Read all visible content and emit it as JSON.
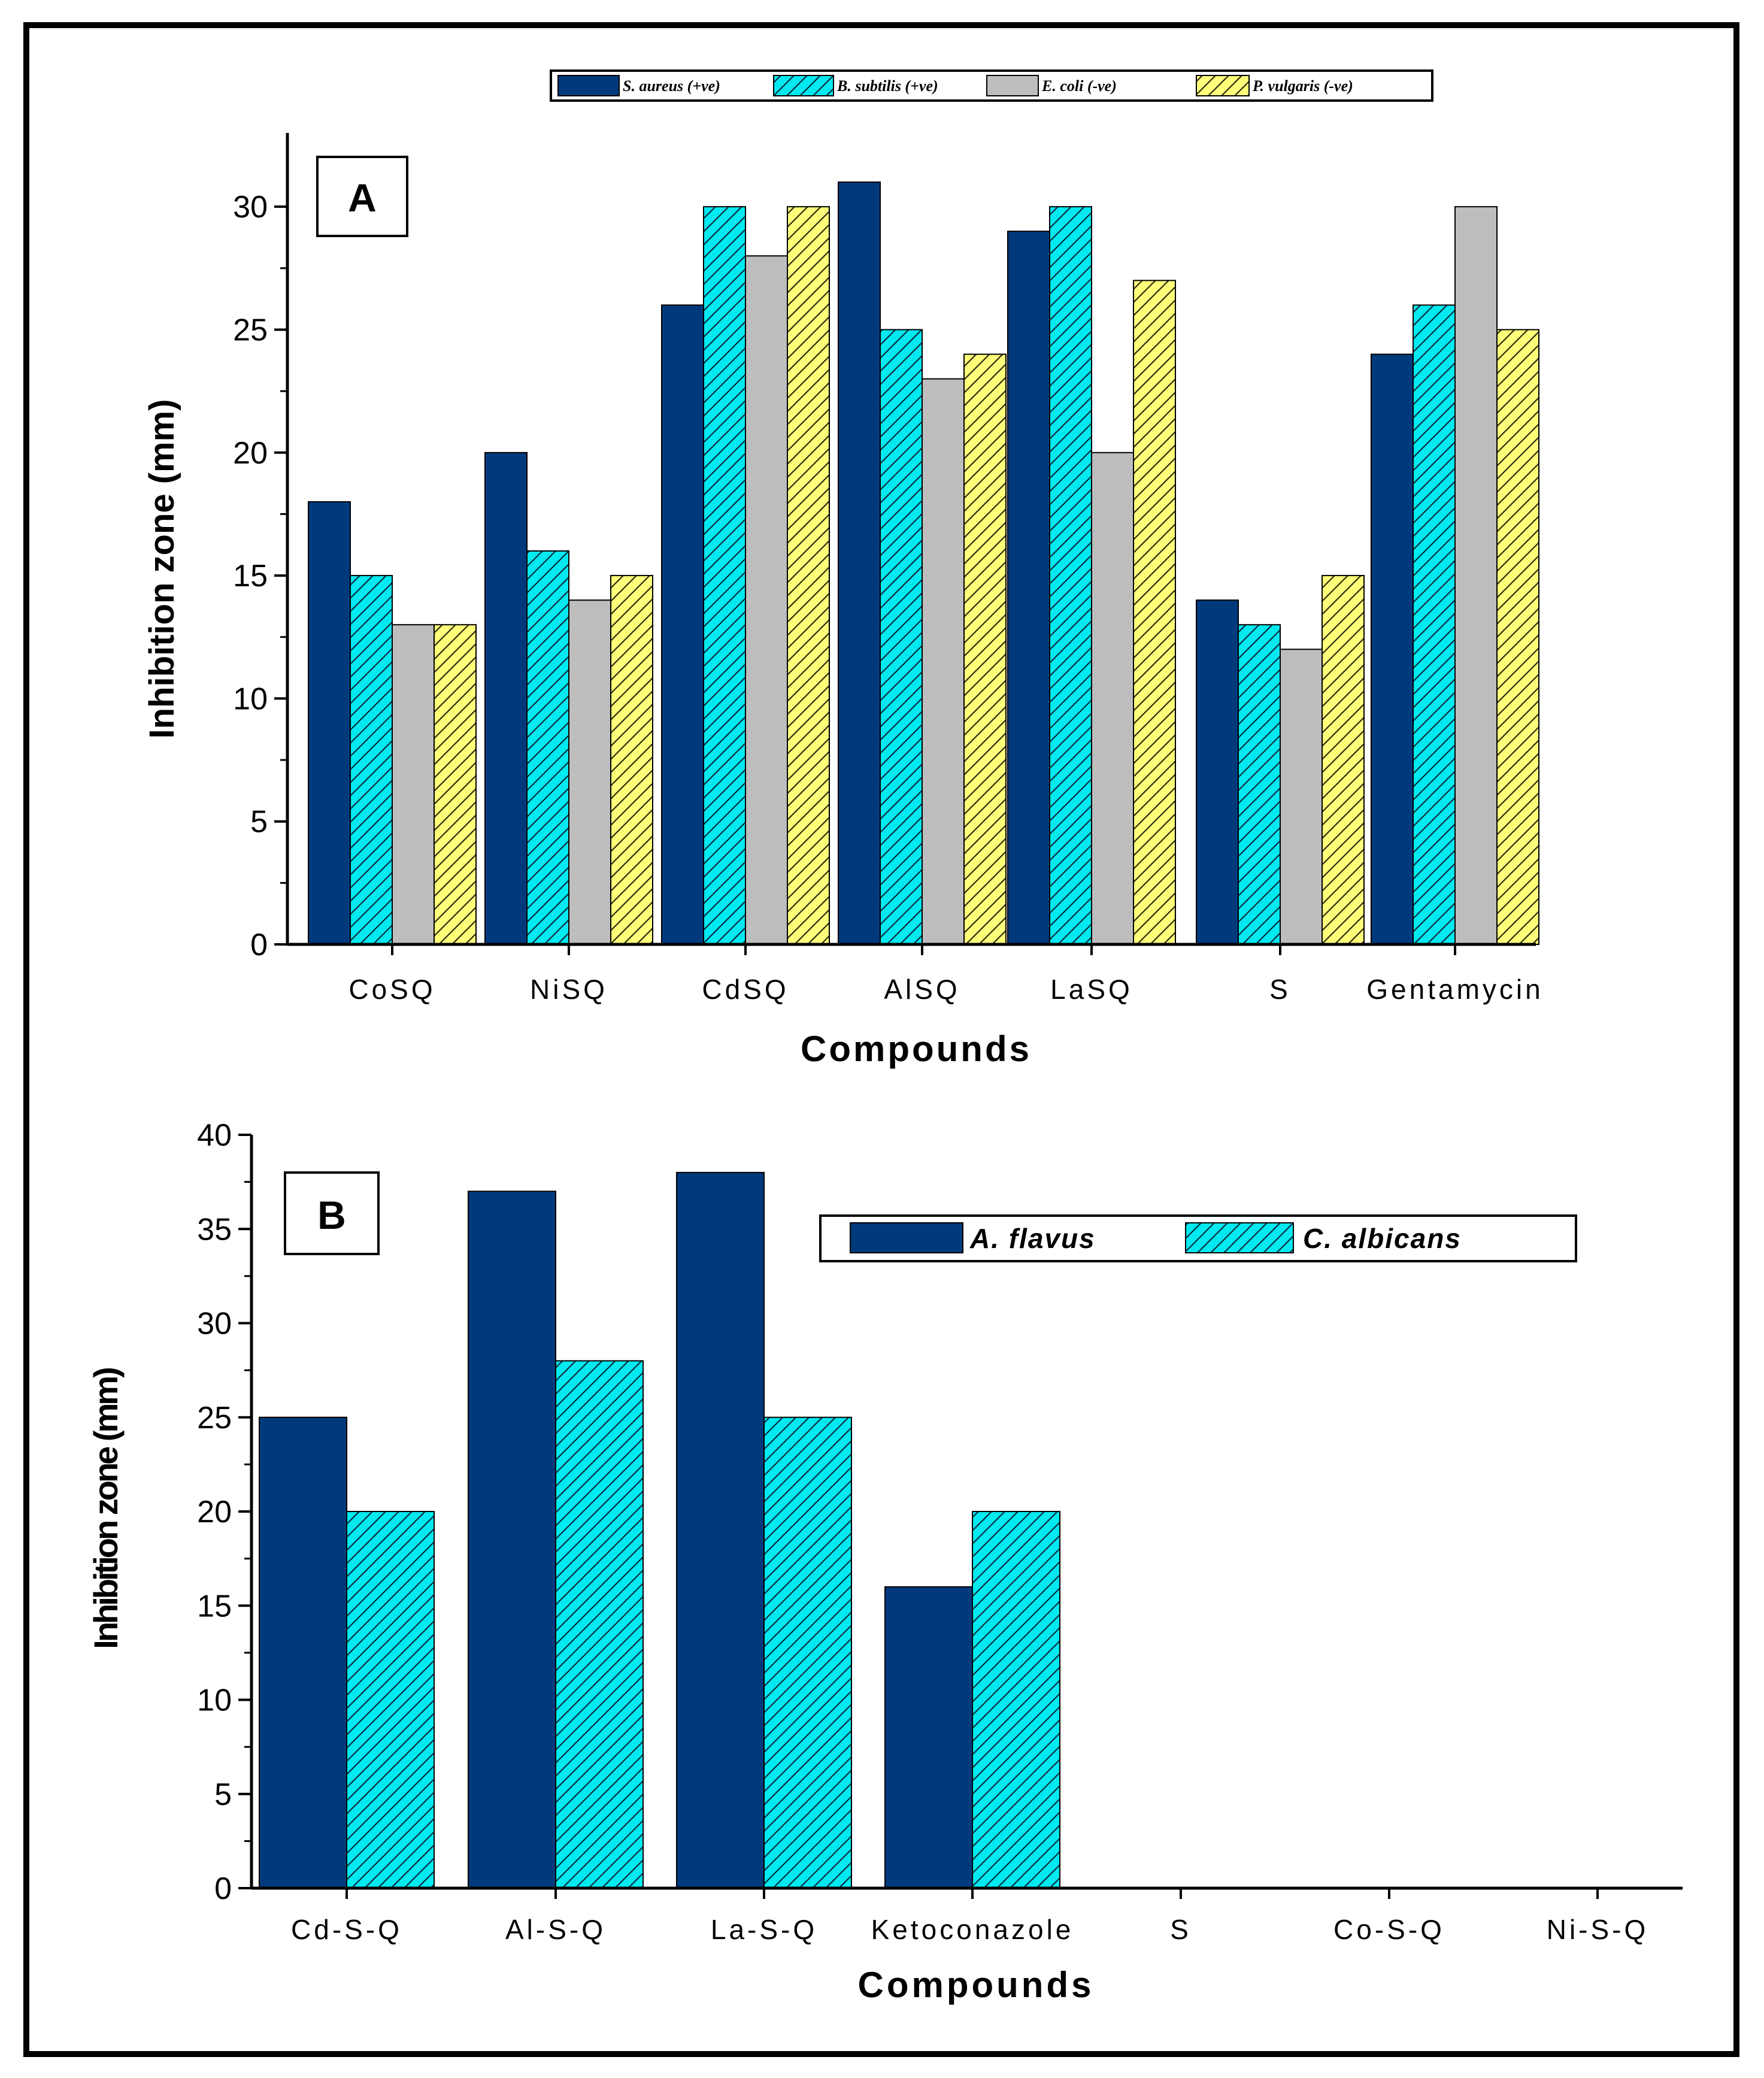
{
  "chart_data": [
    {
      "panel": "A",
      "type": "bar",
      "ylabel": "Inhibition zone (mm)",
      "xlabel": "Compounds",
      "ylim": [
        0,
        33
      ],
      "yticks": [
        0,
        5,
        10,
        15,
        20,
        25,
        30
      ],
      "categories": [
        "CoSQ",
        "NiSQ",
        "CdSQ",
        "AlSQ",
        "LaSQ",
        "S",
        "Gentamycin"
      ],
      "legend_position": "top",
      "series": [
        {
          "name": "S. aureus (+ve)",
          "fill": "#003a7d",
          "hatch": false,
          "values": [
            18,
            20,
            26,
            31,
            29,
            14,
            24
          ]
        },
        {
          "name": "B. subtilis (+ve)",
          "fill": "#00eaf0",
          "hatch": true,
          "values": [
            15,
            16,
            30,
            25,
            30,
            13,
            26
          ]
        },
        {
          "name": "E. coli (-ve)",
          "fill": "#bdbdbd",
          "hatch": false,
          "values": [
            13,
            14,
            28,
            23,
            20,
            12,
            30
          ]
        },
        {
          "name": "P. vulgaris (-ve)",
          "fill": "#ffff7a",
          "hatch": true,
          "values": [
            13,
            15,
            30,
            24,
            27,
            15,
            25
          ]
        }
      ]
    },
    {
      "panel": "B",
      "type": "bar",
      "ylabel": "Inhibition zone (mm)",
      "xlabel": "Compounds",
      "ylim": [
        0,
        40
      ],
      "yticks": [
        0,
        5,
        10,
        15,
        20,
        25,
        30,
        35,
        40
      ],
      "categories": [
        "Cd-S-Q",
        "Al-S-Q",
        "La-S-Q",
        "Ketoconazole",
        "S",
        "Co-S-Q",
        "Ni-S-Q"
      ],
      "legend_position": "top-right",
      "series": [
        {
          "name": "A. flavus",
          "fill": "#003a7d",
          "hatch": false,
          "values": [
            25,
            37,
            38,
            16,
            0,
            0,
            0
          ]
        },
        {
          "name": "C. albicans",
          "fill": "#00eaf0",
          "hatch": true,
          "values": [
            20,
            28,
            25,
            20,
            0,
            0,
            0
          ]
        }
      ]
    }
  ]
}
